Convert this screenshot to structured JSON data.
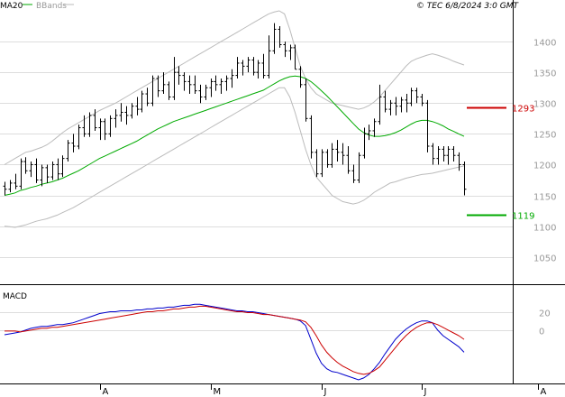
{
  "chart_data": [
    {
      "type": "ohlc",
      "panel": "price",
      "legend": {
        "ma": "MA20",
        "bb": "BBands"
      },
      "copyright": "© TEC 6/8/2024 3:0 GMT",
      "ylim": [
        1010,
        1450
      ],
      "yticks": [
        1050,
        1100,
        1150,
        1200,
        1250,
        1300,
        1350,
        1400
      ],
      "ytick_labels": [
        "1050",
        "1100",
        "1150",
        "1200",
        "1250",
        "1300",
        "1350",
        "1400"
      ],
      "resistance": {
        "value": 1293,
        "label": "1293",
        "color": "#cc0000"
      },
      "support": {
        "value": 1119,
        "label": "1119",
        "color": "#00aa00"
      },
      "xticks": [
        {
          "label": "A",
          "index": 18
        },
        {
          "label": "M",
          "index": 39
        },
        {
          "label": "J",
          "index": 60
        },
        {
          "label": "J",
          "index": 79
        },
        {
          "label": "A",
          "index": 101
        }
      ],
      "colors": {
        "bars": "#000000",
        "ma": "#00aa00",
        "bands": "#bbbbbb",
        "grid": "#dddddd"
      },
      "ohlc": [
        [
          1165,
          1172,
          1150,
          1160
        ],
        [
          1160,
          1175,
          1155,
          1170
        ],
        [
          1170,
          1185,
          1160,
          1165
        ],
        [
          1165,
          1210,
          1160,
          1205
        ],
        [
          1205,
          1212,
          1185,
          1190
        ],
        [
          1190,
          1205,
          1180,
          1200
        ],
        [
          1200,
          1210,
          1170,
          1175
        ],
        [
          1175,
          1200,
          1165,
          1195
        ],
        [
          1195,
          1200,
          1170,
          1180
        ],
        [
          1180,
          1205,
          1175,
          1200
        ],
        [
          1200,
          1210,
          1175,
          1185
        ],
        [
          1185,
          1215,
          1180,
          1210
        ],
        [
          1210,
          1240,
          1205,
          1235
        ],
        [
          1235,
          1250,
          1220,
          1230
        ],
        [
          1230,
          1265,
          1225,
          1260
        ],
        [
          1260,
          1280,
          1245,
          1250
        ],
        [
          1250,
          1285,
          1245,
          1280
        ],
        [
          1280,
          1290,
          1255,
          1260
        ],
        [
          1260,
          1275,
          1240,
          1270
        ],
        [
          1270,
          1275,
          1240,
          1250
        ],
        [
          1250,
          1280,
          1245,
          1275
        ],
        [
          1275,
          1290,
          1260,
          1280
        ],
        [
          1280,
          1300,
          1270,
          1285
        ],
        [
          1285,
          1295,
          1265,
          1280
        ],
        [
          1280,
          1300,
          1275,
          1295
        ],
        [
          1295,
          1310,
          1280,
          1290
        ],
        [
          1290,
          1320,
          1285,
          1315
        ],
        [
          1315,
          1325,
          1295,
          1300
        ],
        [
          1300,
          1345,
          1295,
          1340
        ],
        [
          1340,
          1345,
          1310,
          1320
        ],
        [
          1320,
          1350,
          1315,
          1330
        ],
        [
          1330,
          1335,
          1305,
          1310
        ],
        [
          1310,
          1375,
          1305,
          1350
        ],
        [
          1350,
          1360,
          1330,
          1345
        ],
        [
          1345,
          1350,
          1320,
          1335
        ],
        [
          1335,
          1345,
          1315,
          1330
        ],
        [
          1330,
          1345,
          1315,
          1320
        ],
        [
          1320,
          1330,
          1300,
          1310
        ],
        [
          1310,
          1330,
          1305,
          1325
        ],
        [
          1325,
          1340,
          1310,
          1335
        ],
        [
          1335,
          1345,
          1320,
          1330
        ],
        [
          1330,
          1340,
          1315,
          1335
        ],
        [
          1335,
          1345,
          1320,
          1340
        ],
        [
          1340,
          1355,
          1325,
          1345
        ],
        [
          1345,
          1375,
          1340,
          1365
        ],
        [
          1365,
          1370,
          1345,
          1360
        ],
        [
          1360,
          1375,
          1350,
          1370
        ],
        [
          1370,
          1375,
          1345,
          1350
        ],
        [
          1350,
          1370,
          1340,
          1365
        ],
        [
          1365,
          1380,
          1340,
          1345
        ],
        [
          1345,
          1410,
          1340,
          1385
        ],
        [
          1385,
          1430,
          1380,
          1420
        ],
        [
          1420,
          1425,
          1390,
          1395
        ],
        [
          1395,
          1400,
          1375,
          1385
        ],
        [
          1385,
          1395,
          1370,
          1390
        ],
        [
          1390,
          1395,
          1355,
          1355
        ],
        [
          1355,
          1360,
          1325,
          1330
        ],
        [
          1330,
          1340,
          1270,
          1275
        ],
        [
          1275,
          1280,
          1210,
          1220
        ],
        [
          1220,
          1225,
          1180,
          1185
        ],
        [
          1185,
          1225,
          1180,
          1220
        ],
        [
          1220,
          1225,
          1195,
          1200
        ],
        [
          1200,
          1235,
          1195,
          1225
        ],
        [
          1225,
          1240,
          1205,
          1220
        ],
        [
          1220,
          1235,
          1200,
          1215
        ],
        [
          1215,
          1230,
          1185,
          1190
        ],
        [
          1190,
          1200,
          1170,
          1175
        ],
        [
          1175,
          1220,
          1170,
          1215
        ],
        [
          1215,
          1260,
          1210,
          1250
        ],
        [
          1250,
          1265,
          1240,
          1255
        ],
        [
          1255,
          1275,
          1245,
          1270
        ],
        [
          1270,
          1330,
          1265,
          1310
        ],
        [
          1310,
          1320,
          1285,
          1290
        ],
        [
          1290,
          1305,
          1280,
          1300
        ],
        [
          1300,
          1310,
          1280,
          1295
        ],
        [
          1295,
          1310,
          1285,
          1305
        ],
        [
          1305,
          1315,
          1285,
          1300
        ],
        [
          1300,
          1325,
          1295,
          1320
        ],
        [
          1320,
          1325,
          1300,
          1310
        ],
        [
          1310,
          1315,
          1295,
          1300
        ],
        [
          1300,
          1305,
          1220,
          1230
        ],
        [
          1230,
          1235,
          1200,
          1210
        ],
        [
          1210,
          1230,
          1200,
          1225
        ],
        [
          1225,
          1230,
          1205,
          1215
        ],
        [
          1215,
          1230,
          1200,
          1225
        ],
        [
          1225,
          1230,
          1205,
          1215
        ],
        [
          1215,
          1220,
          1190,
          1200
        ],
        [
          1200,
          1205,
          1150,
          1160
        ]
      ],
      "ma20": [
        1150,
        1152,
        1154,
        1158,
        1160,
        1163,
        1165,
        1168,
        1170,
        1172,
        1175,
        1178,
        1182,
        1186,
        1190,
        1195,
        1200,
        1205,
        1210,
        1214,
        1218,
        1222,
        1226,
        1230,
        1234,
        1238,
        1243,
        1248,
        1253,
        1258,
        1262,
        1266,
        1270,
        1273,
        1276,
        1279,
        1282,
        1285,
        1288,
        1291,
        1294,
        1297,
        1300,
        1303,
        1306,
        1309,
        1312,
        1315,
        1318,
        1321,
        1326,
        1331,
        1336,
        1340,
        1343,
        1344,
        1343,
        1340,
        1335,
        1328,
        1320,
        1312,
        1303,
        1294,
        1285,
        1276,
        1267,
        1258,
        1252,
        1248,
        1246,
        1246,
        1247,
        1249,
        1252,
        1256,
        1261,
        1266,
        1270,
        1272,
        1272,
        1270,
        1267,
        1263,
        1258,
        1254,
        1250,
        1246
      ],
      "bb_upper": [
        1200,
        1205,
        1210,
        1215,
        1220,
        1222,
        1225,
        1228,
        1232,
        1238,
        1245,
        1252,
        1258,
        1263,
        1268,
        1273,
        1278,
        1283,
        1288,
        1292,
        1296,
        1300,
        1305,
        1310,
        1315,
        1320,
        1325,
        1330,
        1335,
        1340,
        1345,
        1350,
        1355,
        1360,
        1365,
        1370,
        1375,
        1380,
        1385,
        1390,
        1395,
        1400,
        1405,
        1410,
        1415,
        1420,
        1425,
        1430,
        1435,
        1440,
        1445,
        1448,
        1450,
        1445,
        1420,
        1390,
        1360,
        1340,
        1325,
        1315,
        1310,
        1305,
        1300,
        1298,
        1296,
        1294,
        1292,
        1290,
        1292,
        1296,
        1302,
        1310,
        1320,
        1330,
        1340,
        1350,
        1360,
        1368,
        1372,
        1375,
        1378,
        1380,
        1378,
        1375,
        1372,
        1368,
        1365,
        1362
      ],
      "bb_lower": [
        1100,
        1099,
        1098,
        1100,
        1102,
        1105,
        1108,
        1110,
        1112,
        1115,
        1118,
        1122,
        1126,
        1130,
        1135,
        1140,
        1145,
        1150,
        1155,
        1160,
        1165,
        1170,
        1175,
        1180,
        1185,
        1190,
        1195,
        1200,
        1205,
        1210,
        1215,
        1220,
        1225,
        1230,
        1235,
        1240,
        1245,
        1250,
        1255,
        1260,
        1265,
        1270,
        1275,
        1280,
        1285,
        1290,
        1295,
        1300,
        1305,
        1310,
        1315,
        1320,
        1325,
        1325,
        1310,
        1285,
        1255,
        1225,
        1200,
        1180,
        1170,
        1160,
        1150,
        1145,
        1140,
        1138,
        1136,
        1138,
        1142,
        1148,
        1155,
        1160,
        1165,
        1170,
        1172,
        1175,
        1178,
        1180,
        1182,
        1184,
        1185,
        1186,
        1188,
        1190,
        1192,
        1194,
        1196,
        1198
      ]
    },
    {
      "type": "line",
      "panel": "macd",
      "legend": "MACD",
      "ylim": [
        -55,
        45
      ],
      "yticks": [
        20,
        0
      ],
      "ytick_labels": [
        "20",
        "0"
      ],
      "series": [
        {
          "color": "#0000cc",
          "values": [
            -5,
            -4,
            -3,
            -2,
            0,
            2,
            3,
            4,
            4,
            5,
            6,
            6,
            7,
            8,
            10,
            12,
            14,
            16,
            18,
            19,
            20,
            20,
            21,
            21,
            21,
            22,
            22,
            23,
            23,
            24,
            24,
            25,
            25,
            26,
            27,
            27,
            28,
            28,
            27,
            26,
            25,
            24,
            23,
            22,
            21,
            21,
            20,
            20,
            19,
            18,
            17,
            16,
            15,
            14,
            13,
            12,
            10,
            5,
            -10,
            -25,
            -36,
            -42,
            -45,
            -46,
            -48,
            -50,
            -52,
            -54,
            -52,
            -48,
            -42,
            -35,
            -26,
            -18,
            -10,
            -4,
            1,
            5,
            8,
            10,
            10,
            8,
            0,
            -6,
            -10,
            -14,
            -18,
            -24
          ]
        },
        {
          "color": "#cc0000",
          "values": [
            -1,
            -1,
            -1,
            -2,
            -1,
            0,
            1,
            2,
            2,
            3,
            3,
            4,
            5,
            6,
            7,
            8,
            9,
            10,
            11,
            12,
            13,
            14,
            15,
            16,
            17,
            18,
            19,
            20,
            20,
            21,
            21,
            22,
            23,
            23,
            24,
            25,
            25,
            26,
            26,
            25,
            24,
            23,
            22,
            21,
            20,
            20,
            19,
            19,
            18,
            17,
            17,
            16,
            15,
            14,
            13,
            12,
            11,
            9,
            3,
            -6,
            -16,
            -24,
            -30,
            -35,
            -39,
            -42,
            -45,
            -47,
            -48,
            -47,
            -44,
            -40,
            -33,
            -26,
            -19,
            -12,
            -6,
            -1,
            3,
            6,
            8,
            8,
            6,
            3,
            0,
            -3,
            -6,
            -10
          ]
        }
      ]
    }
  ]
}
